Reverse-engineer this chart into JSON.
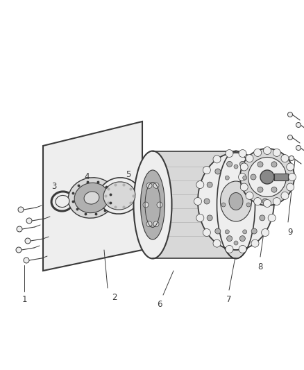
{
  "background_color": "#ffffff",
  "fig_width": 4.38,
  "fig_height": 5.33,
  "dpi": 100,
  "line_color": "#3a3a3a",
  "label_color": "#3a3a3a",
  "label_fontsize": 8.5,
  "light_gray": "#d8d8d8",
  "mid_gray": "#b0b0b0",
  "dark_gray": "#888888",
  "very_light_gray": "#eeeeee"
}
